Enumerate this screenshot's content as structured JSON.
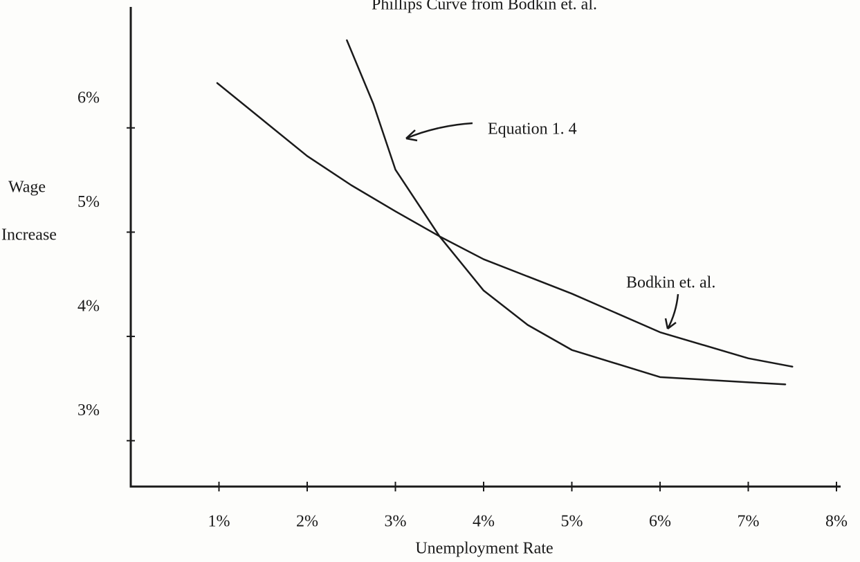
{
  "chart_data": {
    "type": "line",
    "title": "Phillips Curve from Bodkin et. al.",
    "xlabel": "Unemployment Rate",
    "ylabel": [
      "Wage",
      "Increase"
    ],
    "xlim": [
      0,
      8
    ],
    "ylim": [
      2.56,
      7.16
    ],
    "xticks": [
      {
        "value": 1,
        "label": "1%"
      },
      {
        "value": 2,
        "label": "2%"
      },
      {
        "value": 3,
        "label": "3%"
      },
      {
        "value": 4,
        "label": "4%"
      },
      {
        "value": 5,
        "label": "5%"
      },
      {
        "value": 6,
        "label": "6%"
      },
      {
        "value": 7,
        "label": "7%"
      },
      {
        "value": 8,
        "label": "8%"
      }
    ],
    "yticks": [
      {
        "value": 3,
        "label": "3%"
      },
      {
        "value": 4,
        "label": "4%"
      },
      {
        "value": 5,
        "label": "5%"
      },
      {
        "value": 6,
        "label": "6%"
      }
    ],
    "grid": false,
    "series": [
      {
        "name": "Bodkin et. al.",
        "color": "#1a1a1a",
        "x": [
          0.98,
          2,
          2.5,
          3,
          3.5,
          4,
          5,
          6,
          7,
          7.5
        ],
        "values": [
          6.43,
          5.73,
          5.45,
          5.2,
          4.96,
          4.74,
          4.41,
          4.04,
          3.79,
          3.71
        ]
      },
      {
        "name": "Equation 1. 4",
        "color": "#1a1a1a",
        "x": [
          2.45,
          2.75,
          3,
          3.5,
          4,
          4.5,
          5,
          6,
          7,
          7.42
        ],
        "values": [
          6.84,
          6.23,
          5.6,
          4.96,
          4.44,
          4.11,
          3.87,
          3.61,
          3.56,
          3.54
        ]
      }
    ]
  }
}
